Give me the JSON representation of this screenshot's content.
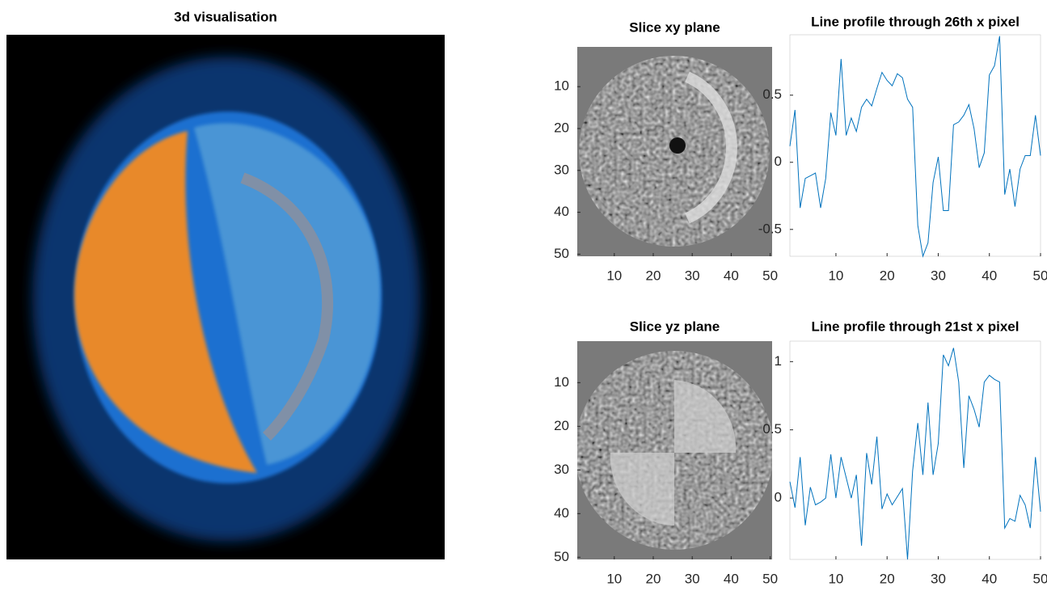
{
  "chart_data": [
    {
      "type": "image",
      "title": "3d visualisation"
    },
    {
      "type": "image",
      "title": "Slice xy plane",
      "xlim": [
        0.5,
        50.5
      ],
      "ylim": [
        0.5,
        50.5
      ],
      "xticks": [
        10,
        20,
        30,
        40,
        50
      ],
      "yticks": [
        10,
        20,
        30,
        40,
        50
      ]
    },
    {
      "type": "line",
      "title": "Line profile through 26th x pixel",
      "color": "#0072bd",
      "xlim": [
        1,
        50
      ],
      "ylim": [
        -0.7,
        0.95
      ],
      "xticks": [
        10,
        20,
        30,
        40,
        50
      ],
      "yticks": [
        -0.5,
        0,
        0.5
      ],
      "x": [
        1,
        2,
        3,
        4,
        5,
        6,
        7,
        8,
        9,
        10,
        11,
        12,
        13,
        14,
        15,
        16,
        17,
        18,
        19,
        20,
        21,
        22,
        23,
        24,
        25,
        26,
        27,
        28,
        29,
        30,
        31,
        32,
        33,
        34,
        35,
        36,
        37,
        38,
        39,
        40,
        41,
        42,
        43,
        44,
        45,
        46,
        47,
        48,
        49,
        50
      ],
      "values": [
        0.12,
        0.39,
        -0.34,
        -0.12,
        -0.1,
        -0.08,
        -0.34,
        -0.12,
        0.37,
        0.2,
        0.77,
        0.2,
        0.33,
        0.23,
        0.41,
        0.47,
        0.42,
        0.55,
        0.67,
        0.61,
        0.57,
        0.66,
        0.63,
        0.47,
        0.41,
        -0.47,
        -0.7,
        -0.6,
        -0.15,
        0.04,
        -0.36,
        -0.36,
        0.28,
        0.3,
        0.35,
        0.43,
        0.25,
        -0.04,
        0.07,
        0.65,
        0.72,
        0.94,
        -0.24,
        -0.05,
        -0.33,
        -0.05,
        0.05,
        0.05,
        0.35,
        0.05
      ]
    },
    {
      "type": "image",
      "title": "Slice yz plane",
      "xlim": [
        0.5,
        50.5
      ],
      "ylim": [
        0.5,
        50.5
      ],
      "xticks": [
        10,
        20,
        30,
        40,
        50
      ],
      "yticks": [
        10,
        20,
        30,
        40,
        50
      ]
    },
    {
      "type": "line",
      "title": "Line profile through 21st x pixel",
      "color": "#0072bd",
      "xlim": [
        1,
        50
      ],
      "ylim": [
        -0.45,
        1.15
      ],
      "xticks": [
        10,
        20,
        30,
        40,
        50
      ],
      "yticks": [
        0,
        0.5,
        1
      ],
      "x": [
        1,
        2,
        3,
        4,
        5,
        6,
        7,
        8,
        9,
        10,
        11,
        12,
        13,
        14,
        15,
        16,
        17,
        18,
        19,
        20,
        21,
        22,
        23,
        24,
        25,
        26,
        27,
        28,
        29,
        30,
        31,
        32,
        33,
        34,
        35,
        36,
        37,
        38,
        39,
        40,
        41,
        42,
        43,
        44,
        45,
        46,
        47,
        48,
        49,
        50
      ],
      "values": [
        0.12,
        -0.07,
        0.3,
        -0.2,
        0.08,
        -0.05,
        -0.03,
        0.0,
        0.32,
        0.0,
        0.3,
        0.15,
        0.0,
        0.17,
        -0.35,
        0.33,
        0.1,
        0.45,
        -0.08,
        0.03,
        -0.05,
        0.01,
        0.07,
        -0.45,
        0.2,
        0.55,
        0.17,
        0.7,
        0.17,
        0.4,
        1.05,
        0.97,
        1.1,
        0.85,
        0.22,
        0.75,
        0.65,
        0.52,
        0.85,
        0.9,
        0.87,
        0.85,
        -0.22,
        -0.15,
        -0.17,
        0.02,
        -0.05,
        -0.22,
        0.3,
        -0.1
      ]
    }
  ]
}
